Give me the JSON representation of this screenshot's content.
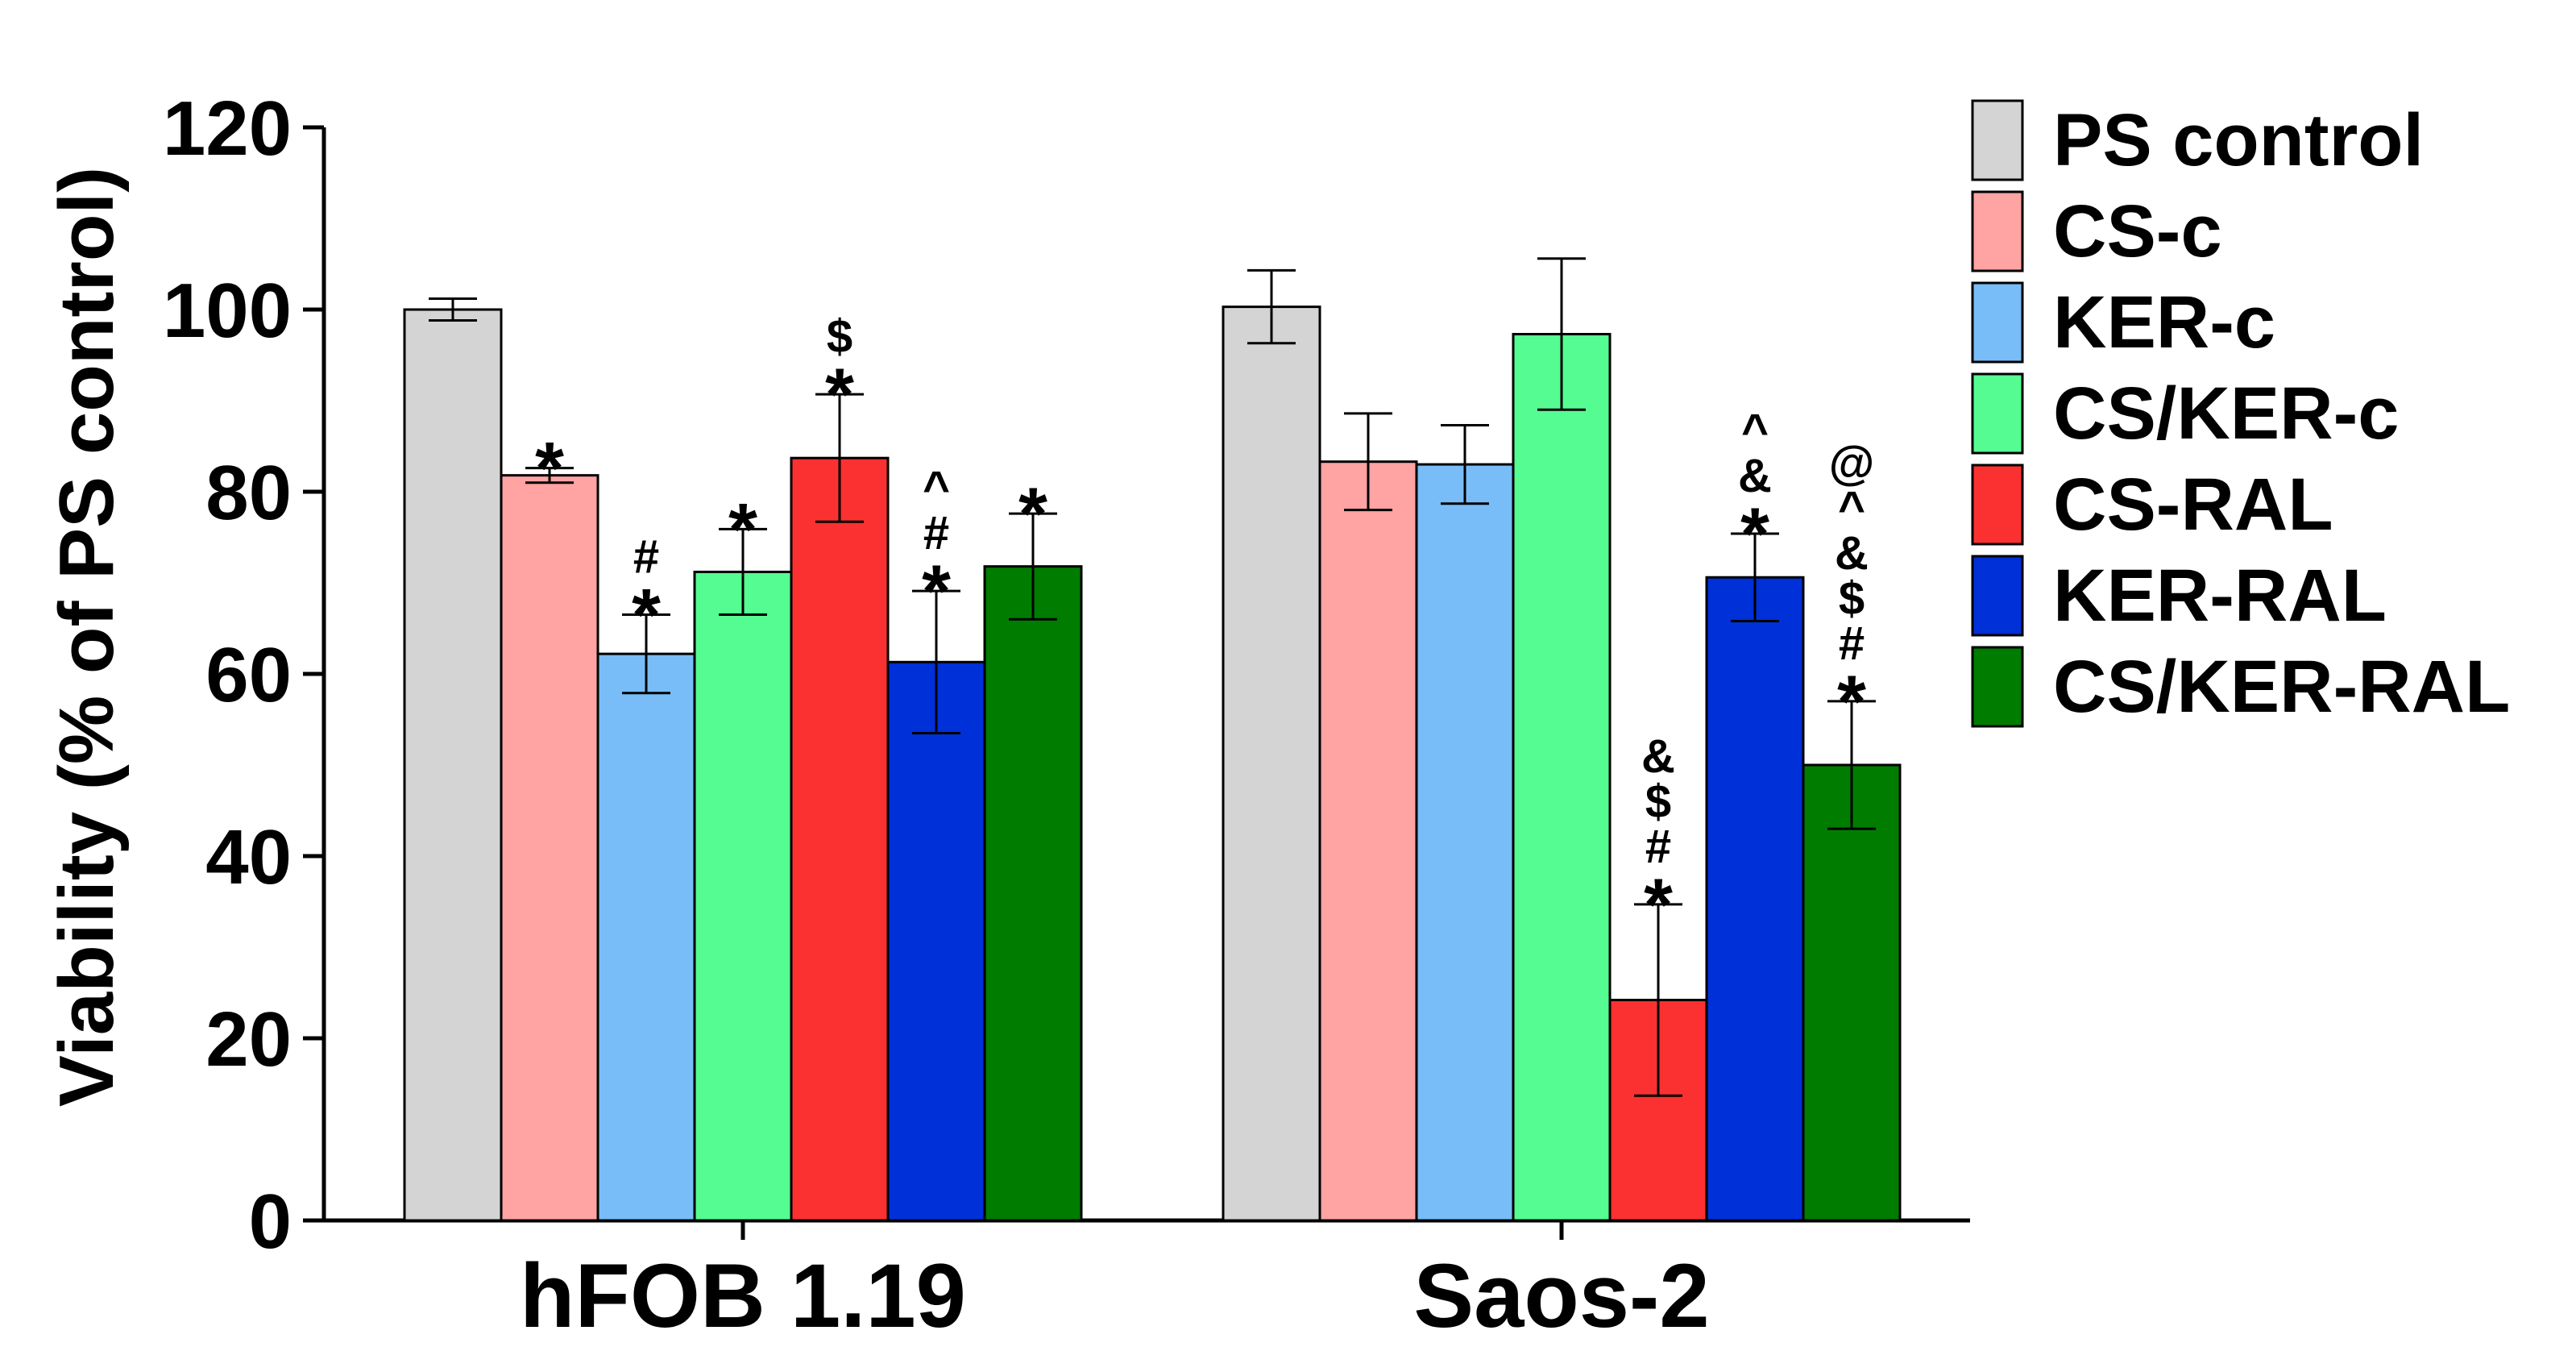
{
  "chart_data": {
    "type": "bar",
    "ylabel": "Viability (% of PS control)",
    "xlabel": "",
    "ylim": [
      0,
      120
    ],
    "yticks": [
      0,
      20,
      40,
      60,
      80,
      100,
      120
    ],
    "grid": false,
    "legend_position": "right",
    "categories": [
      "hFOB 1.19",
      "Saos-2"
    ],
    "series": [
      {
        "name": "PS control",
        "color": "#d4d4d4",
        "values": [
          100,
          100.3
        ],
        "errors": [
          1.2,
          4.0
        ],
        "marks": [
          [],
          []
        ]
      },
      {
        "name": "CS-c",
        "color": "#ffa3a3",
        "values": [
          81.8,
          83.3
        ],
        "errors": [
          0.8,
          5.3
        ],
        "marks": [
          [
            "*"
          ],
          []
        ]
      },
      {
        "name": "KER-c",
        "color": "#78bdf7",
        "values": [
          62.2,
          83.0
        ],
        "errors": [
          4.3,
          4.3
        ],
        "marks": [
          [
            "*",
            "#"
          ],
          []
        ]
      },
      {
        "name": "CS/KER-c",
        "color": "#55fc92",
        "values": [
          71.2,
          97.3
        ],
        "errors": [
          4.7,
          8.3
        ],
        "marks": [
          [
            "*"
          ],
          []
        ]
      },
      {
        "name": "CS-RAL",
        "color": "#fb3131",
        "values": [
          83.7,
          24.2
        ],
        "errors": [
          7.0,
          10.5
        ],
        "marks": [
          [
            "*",
            "$"
          ],
          [
            "*",
            "#",
            "$",
            "&"
          ]
        ]
      },
      {
        "name": "KER-RAL",
        "color": "#0030d8",
        "values": [
          61.3,
          70.6
        ],
        "errors": [
          7.8,
          4.8
        ],
        "marks": [
          [
            "*",
            "#",
            "^"
          ],
          [
            "*",
            "&",
            "^"
          ]
        ]
      },
      {
        "name": "CS/KER-RAL",
        "color": "#007c00",
        "values": [
          71.8,
          50.0
        ],
        "errors": [
          5.8,
          7.0
        ],
        "marks": [
          [
            "*"
          ],
          [
            "*",
            "#",
            "$",
            "&",
            "^",
            "@"
          ]
        ]
      }
    ]
  }
}
